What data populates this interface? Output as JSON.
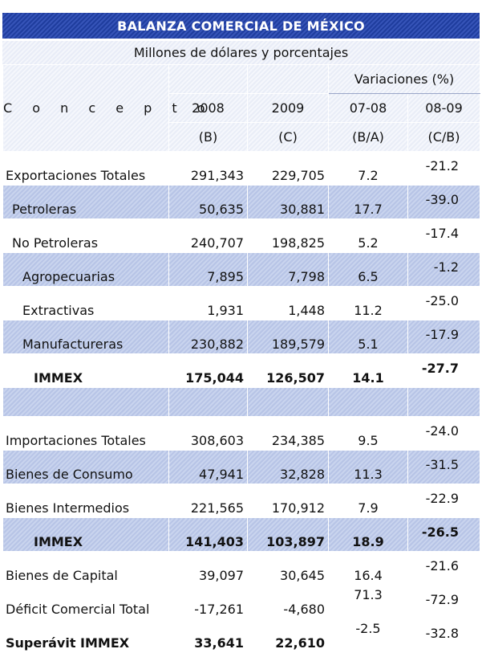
{
  "title": "BALANZA COMERCIAL DE MÉXICO",
  "subtitle": "Millones de dólares y porcentajes",
  "header": {
    "concepto": "C o n c e p t o",
    "variaciones": "Variaciones  (%)",
    "cols": [
      "2008",
      "2009",
      "07-08",
      "08-09"
    ],
    "subcols": [
      "(B)",
      "(C)",
      "(B/A)",
      "(C/B)"
    ]
  },
  "rows": [
    {
      "label": "Exportaciones Totales",
      "v2008": "291,343",
      "v2009": "229,705",
      "var0708": "7.2",
      "var0809": "-21.2"
    },
    {
      "label": "Petroleras",
      "v2008": "50,635",
      "v2009": "30,881",
      "var0708": "17.7",
      "var0809": "-39.0"
    },
    {
      "label": "No Petroleras",
      "v2008": "240,707",
      "v2009": "198,825",
      "var0708": "5.2",
      "var0809": "-17.4"
    },
    {
      "label": "Agropecuarias",
      "v2008": "7,895",
      "v2009": "7,798",
      "var0708": "6.5",
      "var0809": "-1.2"
    },
    {
      "label": "Extractivas",
      "v2008": "1,931",
      "v2009": "1,448",
      "var0708": "11.2",
      "var0809": "-25.0"
    },
    {
      "label": "Manufactureras",
      "v2008": "230,882",
      "v2009": "189,579",
      "var0708": "5.1",
      "var0809": "-17.9"
    },
    {
      "label": "IMMEX",
      "v2008": "175,044",
      "v2009": "126,507",
      "var0708": "14.1",
      "var0809": "-27.7"
    },
    {
      "label": "Importaciones Totales",
      "v2008": "308,603",
      "v2009": "234,385",
      "var0708": "9.5",
      "var0809": "-24.0"
    },
    {
      "label": "Bienes de Consumo",
      "v2008": "47,941",
      "v2009": "32,828",
      "var0708": "11.3",
      "var0809": "-31.5"
    },
    {
      "label": "Bienes Intermedios",
      "v2008": "221,565",
      "v2009": "170,912",
      "var0708": "7.9",
      "var0809": "-22.9"
    },
    {
      "label": "IMMEX",
      "v2008": "141,403",
      "v2009": "103,897",
      "var0708": "18.9",
      "var0809": "-26.5"
    },
    {
      "label": "Bienes de Capital",
      "v2008": "39,097",
      "v2009": "30,645",
      "var0708": "16.4",
      "var0809": "-21.6"
    },
    {
      "label": "Déficit Comercial Total",
      "v2008": "-17,261",
      "v2009": "-4,680",
      "var0708": "71.3",
      "var0809": "-72.9"
    },
    {
      "label": "Superávit IMMEX",
      "v2008": "33,641",
      "v2009": "22,610",
      "var0708": "-2.5",
      "var0809": "-32.8"
    }
  ]
}
